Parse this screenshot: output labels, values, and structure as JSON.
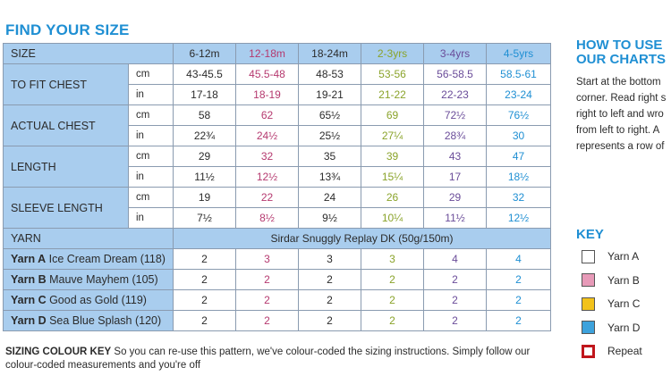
{
  "title": "FIND YOUR SIZE",
  "table": {
    "size_label": "SIZE",
    "sizes": [
      "6-12m",
      "12-18m",
      "18-24m",
      "2-3yrs",
      "3-4yrs",
      "4-5yrs"
    ],
    "size_colors": [
      "#2b2b2b",
      "#b5396f",
      "#2b2b2b",
      "#8aa32a",
      "#6a4c99",
      "#1f8fd3"
    ],
    "measurements": [
      {
        "label": "TO FIT CHEST",
        "rows": [
          {
            "unit": "cm",
            "values": [
              "43-45.5",
              "45.5-48",
              "48-53",
              "53-56",
              "56-58.5",
              "58.5-61"
            ]
          },
          {
            "unit": "in",
            "values": [
              "17-18",
              "18-19",
              "19-21",
              "21-22",
              "22-23",
              "23-24"
            ]
          }
        ]
      },
      {
        "label": "ACTUAL CHEST",
        "rows": [
          {
            "unit": "cm",
            "values": [
              "58",
              "62",
              "65½",
              "69",
              "72½",
              "76½"
            ]
          },
          {
            "unit": "in",
            "values": [
              "22¾",
              "24½",
              "25½",
              "27¼",
              "28¾",
              "30"
            ]
          }
        ]
      },
      {
        "label": "LENGTH",
        "rows": [
          {
            "unit": "cm",
            "values": [
              "29",
              "32",
              "35",
              "39",
              "43",
              "47"
            ]
          },
          {
            "unit": "in",
            "values": [
              "11½",
              "12½",
              "13¾",
              "15¼",
              "17",
              "18½"
            ]
          }
        ]
      },
      {
        "label": "SLEEVE LENGTH",
        "rows": [
          {
            "unit": "cm",
            "values": [
              "19",
              "22",
              "24",
              "26",
              "29",
              "32"
            ]
          },
          {
            "unit": "in",
            "values": [
              "7½",
              "8½",
              "9½",
              "10¼",
              "11½",
              "12½"
            ]
          }
        ]
      }
    ],
    "yarn_label": "YARN",
    "yarn_name": "Sirdar Snuggly Replay DK (50g/150m)",
    "yarns": [
      {
        "code": "Yarn A",
        "name": "Ice Cream Dream (118)",
        "values": [
          "2",
          "3",
          "3",
          "3",
          "4",
          "4"
        ]
      },
      {
        "code": "Yarn B",
        "name": "Mauve Mayhem (105)",
        "values": [
          "2",
          "2",
          "2",
          "2",
          "2",
          "2"
        ]
      },
      {
        "code": "Yarn C",
        "name": "Good as Gold (119)",
        "values": [
          "2",
          "2",
          "2",
          "2",
          "2",
          "2"
        ]
      },
      {
        "code": "Yarn D",
        "name": "Sea Blue Splash (120)",
        "values": [
          "2",
          "2",
          "2",
          "2",
          "2",
          "2"
        ]
      }
    ]
  },
  "sizing_key": {
    "label": "SIZING COLOUR KEY",
    "text": " So you can re-use this pattern, we've colour-coded the sizing instructions. Simply follow our colour-coded measurements and you're off"
  },
  "howto": {
    "title_line1": "HOW TO USE",
    "title_line2": "OUR CHARTS",
    "lines": [
      "Start at the bottom",
      "corner. Read right s",
      "right to left and wro",
      "from left to right. A",
      "represents a row of"
    ]
  },
  "key": {
    "title": "KEY",
    "items": [
      {
        "label": "Yarn A",
        "color": "#ffffff",
        "border": "#555555"
      },
      {
        "label": "Yarn B",
        "color": "#e79ab8",
        "border": "#555555"
      },
      {
        "label": "Yarn C",
        "color": "#f2c21b",
        "border": "#555555"
      },
      {
        "label": "Yarn D",
        "color": "#3da2dc",
        "border": "#555555"
      },
      {
        "label": "Repeat",
        "color": "#ffffff",
        "border": "#c0161c"
      }
    ]
  }
}
